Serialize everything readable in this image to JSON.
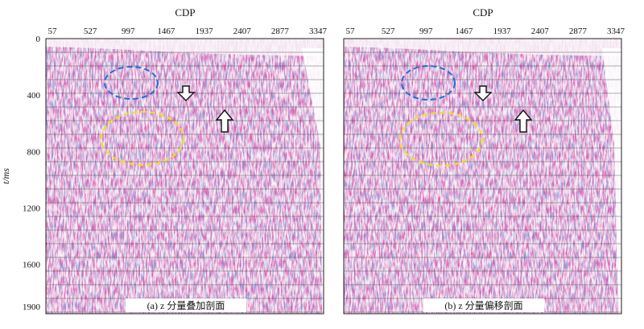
{
  "figure": {
    "x_axis_title": "CDP",
    "y_axis_title": "t/ms",
    "x_ticks": [
      "57",
      "527",
      "997",
      "1467",
      "1937",
      "2407",
      "2877",
      "3347"
    ],
    "y_ticks": [
      "0",
      "400",
      "800",
      "1200",
      "1600",
      "1900"
    ],
    "y_tick_values": [
      0,
      400,
      800,
      1200,
      1600,
      1900
    ],
    "y_range": [
      0,
      1950
    ],
    "panels": [
      {
        "caption": "(a) z 分量叠加剖面"
      },
      {
        "caption": "(b) z 分量偏移剖面"
      }
    ],
    "colors": {
      "positive": "#c2185b",
      "negative": "#3949ab",
      "background": "#f7eef6",
      "ellipse_blue": "#1f6fd1",
      "ellipse_yellow": "#f2e21a"
    }
  }
}
